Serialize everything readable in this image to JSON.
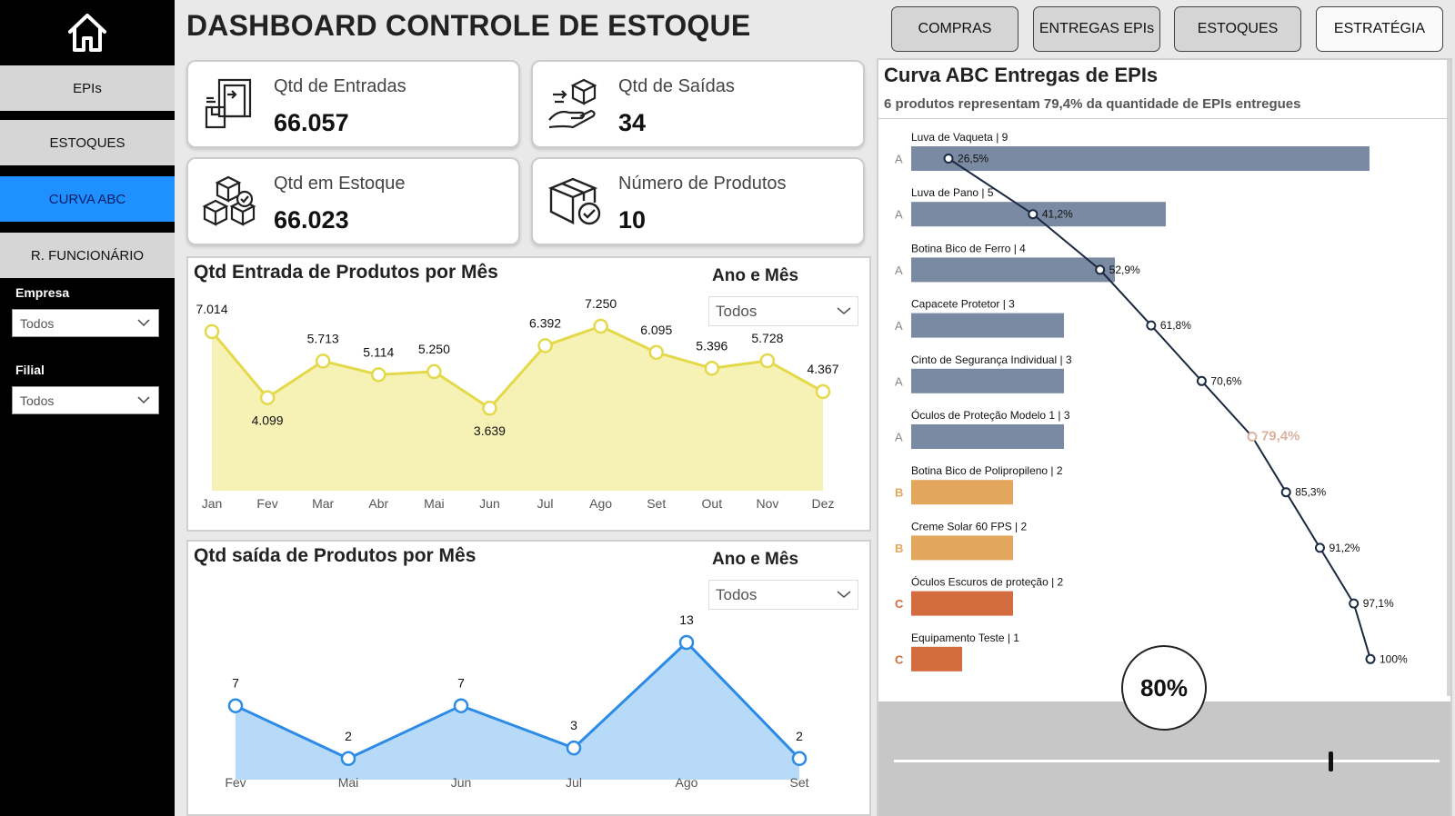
{
  "colors": {
    "accent": "#1e90ff",
    "sidebar": "#000000",
    "bar_a": "#7a8aa3",
    "bar_b": "#e2a65c",
    "bar_c": "#d36d40",
    "line_in": "#e3d94a",
    "fill_in": "#f6f2b5",
    "line_out": "#2b8be6",
    "fill_out": "#b7daf8",
    "curve": "#1b2a40"
  },
  "sidebar": {
    "home_icon": "home-icon",
    "nav": [
      {
        "label": "EPIs",
        "active": false
      },
      {
        "label": "ESTOQUES",
        "active": false
      },
      {
        "label": "CURVA ABC",
        "active": true
      },
      {
        "label": "R. FUNCIONÁRIO",
        "active": false
      }
    ],
    "filters": [
      {
        "label": "Empresa",
        "value": "Todos"
      },
      {
        "label": "Filial",
        "value": "Todos"
      }
    ]
  },
  "header": {
    "title": "DASHBOARD CONTROLE DE ESTOQUE",
    "buttons": [
      "COMPRAS",
      "ENTREGAS EPIs",
      "ESTOQUES",
      "ESTRATÉGIA"
    ]
  },
  "kpis": [
    {
      "label": "Qtd de Entradas",
      "value": "66.057",
      "icon": "inbound-door-icon"
    },
    {
      "label": "Qtd de Saídas",
      "value": "34",
      "icon": "hand-box-icon"
    },
    {
      "label": "Qtd em Estoque",
      "value": "66.023",
      "icon": "stacked-boxes-icon"
    },
    {
      "label": "Número de Produtos",
      "value": "10",
      "icon": "box-check-icon"
    }
  ],
  "entrada": {
    "title": "Qtd Entrada de Produtos por Mês",
    "slicer_title": "Ano e Mês",
    "slicer_value": "Todos"
  },
  "saida": {
    "title": "Qtd saída de Produtos por Mês",
    "slicer_title": "Ano e Mês",
    "slicer_value": "Todos"
  },
  "abc": {
    "title": "Curva ABC Entregas de EPIs",
    "subtitle": "6 produtos representam 79,4% da quantidade de EPIs entregues",
    "threshold_label": "80%",
    "threshold": 0.8
  },
  "chart_data": [
    {
      "type": "area",
      "title": "Qtd Entrada de Produtos por Mês",
      "categories": [
        "Jan",
        "Fev",
        "Mar",
        "Abr",
        "Mai",
        "Jun",
        "Jul",
        "Ago",
        "Set",
        "Out",
        "Nov",
        "Dez"
      ],
      "values": [
        7014,
        4099,
        5713,
        5114,
        5250,
        3639,
        6392,
        7250,
        6095,
        5396,
        5728,
        4367
      ],
      "labels": [
        "7.014",
        "4.099",
        "5.713",
        "5.114",
        "5.250",
        "3.639",
        "6.392",
        "7.250",
        "6.095",
        "5.396",
        "5.728",
        "4.367"
      ],
      "ylim": [
        0,
        7250
      ]
    },
    {
      "type": "area",
      "title": "Qtd saída de Produtos por Mês",
      "categories": [
        "Fev",
        "Mai",
        "Jun",
        "Jul",
        "Ago",
        "Set"
      ],
      "values": [
        7,
        2,
        7,
        3,
        13,
        2
      ],
      "labels": [
        "7",
        "2",
        "7",
        "3",
        "13",
        "2"
      ],
      "ylim": [
        0,
        13
      ]
    },
    {
      "type": "bar",
      "title": "Curva ABC Entregas de EPIs",
      "categories": [
        "Luva de Vaqueta",
        "Luva de Pano",
        "Botina Bico de Ferro",
        "Capacete Protetor",
        "Cinto de Segurança Individual",
        "Óculos de Proteção Modelo 1",
        "Botina Bico de Polipropileno",
        "Creme Solar 60 FPS",
        "Óculos Escuros de proteção",
        "Equipamento Teste"
      ],
      "values": [
        9,
        5,
        4,
        3,
        3,
        3,
        2,
        2,
        2,
        1
      ],
      "class": [
        "A",
        "A",
        "A",
        "A",
        "A",
        "A",
        "B",
        "B",
        "C",
        "C"
      ],
      "cumulative": [
        26.5,
        41.2,
        52.9,
        61.8,
        70.6,
        79.4,
        85.3,
        91.2,
        97.1,
        100
      ],
      "cumulative_labels": [
        "26,5%",
        "41,2%",
        "52,9%",
        "61,8%",
        "70,6%",
        "79,4%",
        "85,3%",
        "91,2%",
        "97,1%",
        "100%"
      ]
    }
  ]
}
